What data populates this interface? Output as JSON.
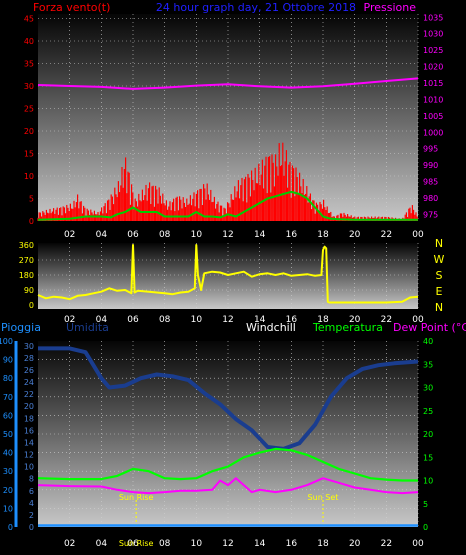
{
  "colors": {
    "wind": "#ff0000",
    "gust": "#00cc00",
    "pressure": "#ff00ff",
    "direction": "#ffff00",
    "rain": "#1e90ff",
    "humidity": "#1a3d8f",
    "windchill": "#ffffff",
    "temperature": "#00ff00",
    "dewpoint": "#ff00ff",
    "title": "#2020ff",
    "sun": "#ffff00"
  },
  "chart_data": [
    {
      "type": "line",
      "title": "24 hour graph day, 21 Ottobre 2018",
      "left_label": "Forza vento(t)",
      "right_label": "Pressione",
      "x_ticks": [
        "02",
        "04",
        "06",
        "08",
        "10",
        "12",
        "14",
        "16",
        "18",
        "20",
        "22",
        "00"
      ],
      "left_ticks": [
        0,
        5,
        10,
        15,
        20,
        25,
        30,
        35,
        40,
        45
      ],
      "right_ticks": [
        975,
        980,
        985,
        990,
        995,
        1000,
        1005,
        1010,
        1015,
        1020,
        1025,
        1030,
        1035
      ],
      "series": [
        {
          "role": "wind",
          "x": [
            0,
            2.2,
            2.5,
            3.0,
            3.8,
            4.6,
            5.1,
            5.5,
            5.8,
            6.1,
            6.6,
            7.0,
            7.6,
            8.2,
            8.8,
            9.4,
            10.0,
            10.6,
            11.2,
            11.8,
            12.2,
            12.6,
            13.2,
            13.8,
            14.2,
            14.6,
            15.0,
            15.3,
            15.6,
            15.9,
            16.2,
            16.5,
            16.8,
            17.1,
            17.4,
            17.7,
            18.0,
            18.3,
            18.7,
            19.2,
            20.0,
            21.0,
            22.0,
            23.0,
            23.6,
            24.0
          ],
          "y": [
            2,
            4,
            6,
            3,
            2,
            6,
            9,
            15,
            11,
            5,
            7,
            9,
            8,
            4,
            6,
            5,
            7,
            9,
            5,
            3,
            6,
            9,
            11,
            12,
            14,
            16,
            15,
            18,
            17,
            14,
            13,
            11,
            9,
            7,
            5,
            4,
            5,
            3,
            1,
            2,
            1,
            1,
            1,
            0.5,
            4,
            1
          ]
        },
        {
          "role": "gust",
          "x": [
            0,
            2.0,
            3.0,
            4.0,
            4.6,
            5.0,
            5.5,
            6.0,
            6.5,
            7.0,
            7.5,
            8.0,
            8.5,
            9.0,
            9.5,
            10.0,
            10.5,
            11.0,
            11.5,
            12.0,
            12.5,
            13.0,
            13.5,
            14.0,
            14.5,
            15.0,
            15.5,
            16.0,
            16.5,
            17.0,
            17.5,
            18.0,
            18.5,
            19.0,
            20.0,
            22.0,
            24.0
          ],
          "y": [
            0.3,
            0.5,
            1,
            1,
            0.8,
            1.5,
            2,
            3,
            2,
            2,
            2,
            1,
            1,
            1,
            1,
            2,
            1,
            1,
            0.8,
            1.5,
            1,
            2,
            3,
            4,
            5,
            5.5,
            6,
            6.5,
            6,
            5,
            3,
            1,
            0.5,
            0.4,
            0.3,
            0.3,
            0.3
          ]
        },
        {
          "role": "pressure",
          "x": [
            0,
            2,
            4,
            6,
            8,
            10,
            12,
            14,
            16,
            18,
            20,
            22,
            24
          ],
          "y": [
            1014.4,
            1014.1,
            1013.8,
            1013.2,
            1013.6,
            1014.2,
            1014.6,
            1014.0,
            1013.6,
            1014.0,
            1014.8,
            1015.6,
            1016.4
          ]
        }
      ]
    },
    {
      "type": "line",
      "left_ticks": [
        0,
        90,
        180,
        270,
        360
      ],
      "right_ticks": [
        "N",
        "W",
        "S",
        "E",
        "N"
      ],
      "x_ticks": [
        "02",
        "04",
        "06",
        "08",
        "10",
        "12",
        "14",
        "16",
        "18",
        "20",
        "22",
        "00"
      ],
      "series": [
        {
          "role": "direction",
          "x": [
            0,
            0.5,
            1,
            1.5,
            2,
            2.5,
            3,
            3.5,
            4,
            4.5,
            5,
            5.5,
            5.9,
            6.0,
            6.1,
            6.3,
            7,
            7.5,
            8,
            8.5,
            9,
            9.5,
            9.9,
            10.0,
            10.1,
            10.3,
            10.5,
            11,
            11.5,
            12,
            12.5,
            13,
            13.5,
            14,
            14.5,
            15,
            15.5,
            16,
            16.5,
            17,
            17.5,
            17.9,
            18.0,
            18.1,
            18.2,
            18.3,
            18.4,
            19,
            20,
            21,
            22,
            23,
            23.5,
            24
          ],
          "y": [
            60,
            40,
            50,
            45,
            35,
            55,
            60,
            70,
            80,
            100,
            85,
            90,
            70,
            360,
            75,
            85,
            80,
            75,
            70,
            65,
            75,
            80,
            100,
            360,
            180,
            90,
            190,
            200,
            195,
            180,
            190,
            200,
            170,
            185,
            190,
            180,
            190,
            175,
            180,
            185,
            175,
            180,
            330,
            350,
            340,
            20,
            15,
            15,
            15,
            15,
            15,
            20,
            45,
            50
          ]
        }
      ]
    },
    {
      "type": "line",
      "left_labels": [
        {
          "text": "Pioggia"
        },
        {
          "text": "Umidita"
        },
        {
          "text": "Windchill"
        },
        {
          "text": "Temperatura"
        },
        {
          "text": "Dew Point (°C)"
        }
      ],
      "rain_ticks": [
        0,
        10,
        20,
        30,
        40,
        50,
        60,
        70,
        80,
        90,
        100
      ],
      "humidity_ticks": [
        0,
        2,
        4,
        6,
        8,
        10,
        12,
        14,
        16,
        18,
        20,
        22,
        24,
        26,
        28,
        30
      ],
      "temp_ticks": [
        0,
        5,
        10,
        15,
        20,
        25,
        30,
        35,
        40
      ],
      "x_ticks": [
        "02",
        "04",
        "06",
        "08",
        "10",
        "12",
        "14",
        "16",
        "18",
        "20",
        "22",
        "00"
      ],
      "annotations": [
        {
          "text": "Sun Rise",
          "x": 6.2
        },
        {
          "text": "Sun Set",
          "x": 18.0
        },
        {
          "text": "Sun Rise",
          "x": 6.2,
          "bottom": true
        }
      ],
      "series": [
        {
          "role": "humidity",
          "x": [
            0,
            2,
            3,
            4,
            4.5,
            5.5,
            6.5,
            7.5,
            8.5,
            9.5,
            10.5,
            11.5,
            12.5,
            13.5,
            14.5,
            15.5,
            16.5,
            17.5,
            18.5,
            19.5,
            20.5,
            21.5,
            22.5,
            24
          ],
          "y": [
            96,
            96,
            94,
            80,
            75,
            76,
            80,
            82,
            81,
            79,
            72,
            66,
            58,
            52,
            43,
            42,
            45,
            55,
            70,
            80,
            85,
            87,
            88,
            89
          ]
        },
        {
          "role": "temperature",
          "x": [
            0,
            2,
            4,
            5,
            6,
            7,
            8,
            9,
            10,
            11,
            12,
            13,
            14,
            15,
            16,
            17,
            18,
            19,
            20,
            21,
            22,
            23,
            24
          ],
          "y": [
            10.5,
            10.3,
            10.3,
            11.0,
            12.5,
            12.0,
            10.5,
            10.3,
            10.5,
            12.0,
            13.0,
            15.0,
            16.0,
            16.8,
            16.5,
            15.5,
            14.0,
            12.5,
            11.5,
            10.5,
            10.2,
            10.0,
            10.0
          ]
        },
        {
          "role": "dewpoint",
          "x": [
            0,
            2,
            4,
            5,
            6,
            7,
            8,
            9,
            10,
            11,
            11.5,
            12,
            12.5,
            13,
            13.5,
            14,
            15,
            16,
            17,
            18,
            19,
            20,
            21,
            22,
            23,
            24
          ],
          "y": [
            9.0,
            8.8,
            8.7,
            8.0,
            7.5,
            7.3,
            7.5,
            7.8,
            7.8,
            8.0,
            10.0,
            9.0,
            10.5,
            9.0,
            7.5,
            8.0,
            7.5,
            8.0,
            9.0,
            10.5,
            9.5,
            8.5,
            8.0,
            7.5,
            7.3,
            7.5
          ]
        },
        {
          "role": "rain",
          "x": [
            0,
            24
          ],
          "y": [
            0,
            0
          ]
        }
      ]
    }
  ]
}
